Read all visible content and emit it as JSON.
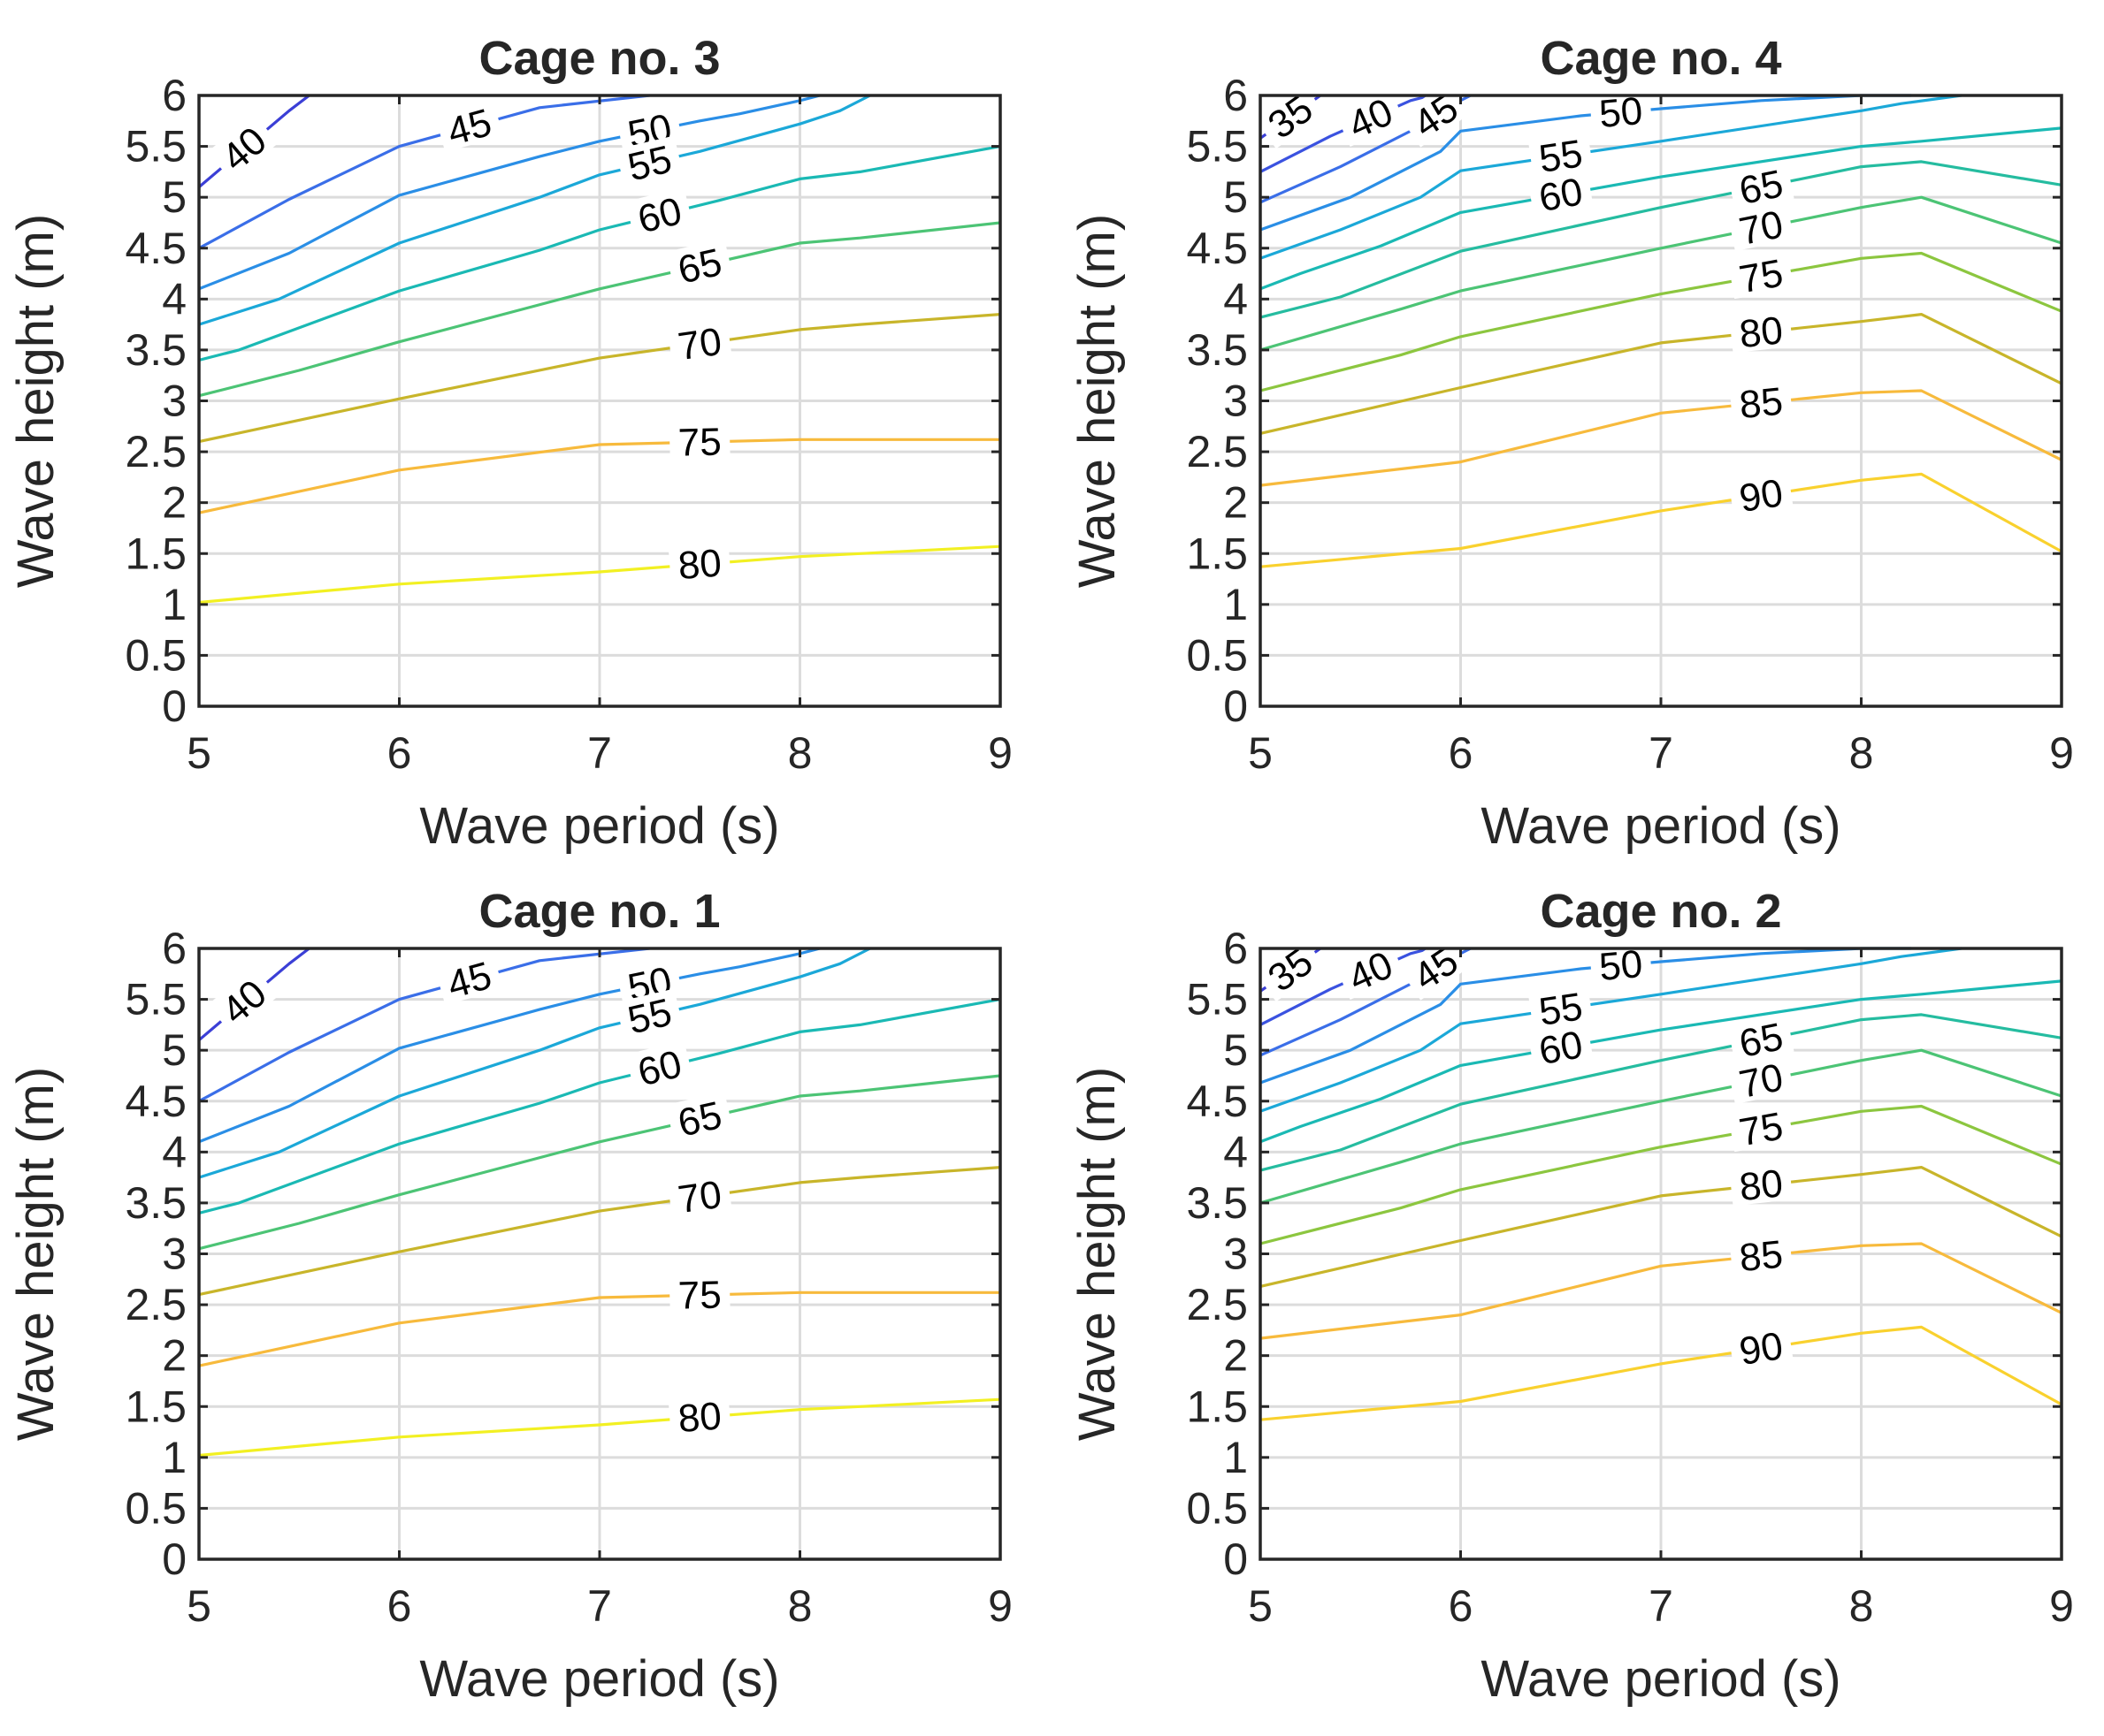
{
  "chart_data": [
    {
      "type": "contour",
      "title": "Cage no. 3",
      "xlabel": "Wave period (s)",
      "ylabel": "Wave height (m)",
      "xlim": [
        5,
        9
      ],
      "ylim": [
        0,
        6
      ],
      "xticks": [
        "5",
        "6",
        "7",
        "8",
        "9"
      ],
      "yticks": [
        "0",
        "0.5",
        "1",
        "1.5",
        "2",
        "2.5",
        "3",
        "3.5",
        "4",
        "4.5",
        "5",
        "5.5",
        "6"
      ],
      "grid": true,
      "levels": [
        {
          "level": "40",
          "color": "#3b3fd6",
          "x": [
            5,
            5.45,
            5.55
          ],
          "y": [
            5.1,
            5.85,
            6
          ]
        },
        {
          "level": "45",
          "color": "#3a6ee8",
          "x": [
            5,
            5.45,
            6,
            6.7,
            7.25
          ],
          "y": [
            4.5,
            4.98,
            5.5,
            5.88,
            6
          ]
        },
        {
          "level": "50",
          "color": "#2a8ee6",
          "x": [
            5,
            5.45,
            6,
            6.7,
            7,
            7.5,
            7.7,
            8,
            8.1
          ],
          "y": [
            4.1,
            4.45,
            5.02,
            5.4,
            5.55,
            5.75,
            5.82,
            5.95,
            6
          ]
        },
        {
          "level": "55",
          "color": "#1ba8d8",
          "x": [
            5,
            5.4,
            6,
            6.7,
            7,
            7.5,
            8,
            8.2,
            8.35
          ],
          "y": [
            3.75,
            4.0,
            4.55,
            5.0,
            5.22,
            5.45,
            5.72,
            5.85,
            6
          ]
        },
        {
          "level": "60",
          "color": "#1ab9b4",
          "x": [
            5,
            5.2,
            6,
            6.7,
            7,
            7.6,
            8,
            8.3,
            9
          ],
          "y": [
            3.4,
            3.5,
            4.08,
            4.48,
            4.68,
            4.97,
            5.18,
            5.25,
            5.5
          ]
        },
        {
          "level": "65",
          "color": "#4cc475",
          "x": [
            5,
            5.5,
            6,
            7,
            8,
            8.3,
            9
          ],
          "y": [
            3.05,
            3.3,
            3.58,
            4.1,
            4.55,
            4.6,
            4.75
          ]
        },
        {
          "level": "70",
          "color": "#c8b52a",
          "x": [
            5,
            6,
            7,
            8,
            8.3,
            9
          ],
          "y": [
            2.6,
            3.02,
            3.42,
            3.7,
            3.75,
            3.85
          ]
        },
        {
          "level": "75",
          "color": "#f7ba3c",
          "x": [
            5,
            6,
            7,
            8,
            8.3,
            9
          ],
          "y": [
            1.9,
            2.32,
            2.57,
            2.62,
            2.62,
            2.62
          ]
        },
        {
          "level": "80",
          "color": "#f2f022",
          "x": [
            5,
            6,
            7,
            8,
            8.3,
            9
          ],
          "y": [
            1.02,
            1.2,
            1.32,
            1.47,
            1.5,
            1.57
          ]
        }
      ]
    },
    {
      "type": "contour",
      "title": "Cage no. 4",
      "xlabel": "Wave period (s)",
      "ylabel": "Wave height (m)",
      "xlim": [
        5,
        9
      ],
      "ylim": [
        0,
        6
      ],
      "xticks": [
        "5",
        "6",
        "7",
        "8",
        "9"
      ],
      "yticks": [
        "0",
        "0.5",
        "1",
        "1.5",
        "2",
        "2.5",
        "3",
        "3.5",
        "4",
        "4.5",
        "5",
        "5.5",
        "6"
      ],
      "grid": true,
      "levels": [
        {
          "level": "35",
          "color": "#3b3fd6",
          "x": [
            5,
            5.3
          ],
          "y": [
            5.58,
            6
          ]
        },
        {
          "level": "40",
          "color": "#3a52e0",
          "x": [
            5,
            5.35,
            5.75,
            5.85
          ],
          "y": [
            5.25,
            5.6,
            5.95,
            6
          ]
        },
        {
          "level": "45",
          "color": "#3a6ee8",
          "x": [
            5,
            5.4,
            5.8,
            5.95,
            6.05
          ],
          "y": [
            4.95,
            5.3,
            5.7,
            5.9,
            6
          ]
        },
        {
          "level": "50",
          "color": "#2a8ee6",
          "x": [
            5,
            5.45,
            5.9,
            6,
            6.6,
            7,
            7.5,
            8,
            8.25
          ],
          "y": [
            4.68,
            5.0,
            5.45,
            5.65,
            5.8,
            5.87,
            5.95,
            6.0,
            6.0
          ]
        },
        {
          "level": "55",
          "color": "#1ba8d8",
          "x": [
            5,
            5.4,
            5.8,
            6,
            7,
            8,
            8.2,
            8.5
          ],
          "y": [
            4.4,
            4.68,
            5.0,
            5.26,
            5.55,
            5.85,
            5.92,
            6
          ]
        },
        {
          "level": "60",
          "color": "#1ab9b4",
          "x": [
            5,
            5.2,
            5.6,
            6,
            7,
            8,
            8.3,
            9
          ],
          "y": [
            4.1,
            4.25,
            4.52,
            4.85,
            5.2,
            5.5,
            5.55,
            5.68
          ]
        },
        {
          "level": "65",
          "color": "#25bca0",
          "x": [
            5,
            5.4,
            6,
            7,
            8,
            8.3,
            9
          ],
          "y": [
            3.82,
            4.02,
            4.47,
            4.9,
            5.3,
            5.35,
            5.12
          ]
        },
        {
          "level": "70",
          "color": "#4cc475",
          "x": [
            5,
            5.7,
            6,
            7,
            8,
            8.3,
            9
          ],
          "y": [
            3.5,
            3.9,
            4.08,
            4.5,
            4.9,
            5.0,
            4.55
          ]
        },
        {
          "level": "75",
          "color": "#8cc63f",
          "x": [
            5,
            5.7,
            6,
            7,
            8,
            8.3,
            9
          ],
          "y": [
            3.1,
            3.45,
            3.63,
            4.05,
            4.4,
            4.45,
            3.88
          ]
        },
        {
          "level": "80",
          "color": "#c8b52a",
          "x": [
            5,
            6,
            7,
            8,
            8.3,
            9
          ],
          "y": [
            2.68,
            3.13,
            3.57,
            3.78,
            3.85,
            3.17
          ]
        },
        {
          "level": "85",
          "color": "#f7ba3c",
          "x": [
            5,
            6,
            7,
            8,
            8.3,
            9
          ],
          "y": [
            2.17,
            2.4,
            2.88,
            3.08,
            3.1,
            2.42
          ]
        },
        {
          "level": "90",
          "color": "#f9d12e",
          "x": [
            5,
            6,
            7,
            8,
            8.3,
            9
          ],
          "y": [
            1.37,
            1.55,
            1.92,
            2.22,
            2.28,
            1.52
          ]
        }
      ]
    },
    {
      "type": "contour",
      "title": "Cage no. 1",
      "xlabel": "Wave period (s)",
      "ylabel": "Wave height (m)",
      "xlim": [
        5,
        9
      ],
      "ylim": [
        0,
        6
      ],
      "xticks": [
        "5",
        "6",
        "7",
        "8",
        "9"
      ],
      "yticks": [
        "0",
        "0.5",
        "1",
        "1.5",
        "2",
        "2.5",
        "3",
        "3.5",
        "4",
        "4.5",
        "5",
        "5.5",
        "6"
      ],
      "grid": true,
      "levels": [
        {
          "level": "40",
          "color": "#3b3fd6",
          "x": [
            5,
            5.45,
            5.55
          ],
          "y": [
            5.1,
            5.85,
            6
          ]
        },
        {
          "level": "45",
          "color": "#3a6ee8",
          "x": [
            5,
            5.45,
            6,
            6.7,
            7.25
          ],
          "y": [
            4.5,
            4.98,
            5.5,
            5.88,
            6
          ]
        },
        {
          "level": "50",
          "color": "#2a8ee6",
          "x": [
            5,
            5.45,
            6,
            6.7,
            7,
            7.5,
            7.7,
            8,
            8.1
          ],
          "y": [
            4.1,
            4.45,
            5.02,
            5.4,
            5.55,
            5.75,
            5.82,
            5.95,
            6
          ]
        },
        {
          "level": "55",
          "color": "#1ba8d8",
          "x": [
            5,
            5.4,
            6,
            6.7,
            7,
            7.5,
            8,
            8.2,
            8.35
          ],
          "y": [
            3.75,
            4.0,
            4.55,
            5.0,
            5.22,
            5.45,
            5.72,
            5.85,
            6
          ]
        },
        {
          "level": "60",
          "color": "#1ab9b4",
          "x": [
            5,
            5.2,
            6,
            6.7,
            7,
            7.6,
            8,
            8.3,
            9
          ],
          "y": [
            3.4,
            3.5,
            4.08,
            4.48,
            4.68,
            4.97,
            5.18,
            5.25,
            5.5
          ]
        },
        {
          "level": "65",
          "color": "#4cc475",
          "x": [
            5,
            5.5,
            6,
            7,
            8,
            8.3,
            9
          ],
          "y": [
            3.05,
            3.3,
            3.58,
            4.1,
            4.55,
            4.6,
            4.75
          ]
        },
        {
          "level": "70",
          "color": "#c8b52a",
          "x": [
            5,
            6,
            7,
            8,
            8.3,
            9
          ],
          "y": [
            2.6,
            3.02,
            3.42,
            3.7,
            3.75,
            3.85
          ]
        },
        {
          "level": "75",
          "color": "#f7ba3c",
          "x": [
            5,
            6,
            7,
            8,
            8.3,
            9
          ],
          "y": [
            1.9,
            2.32,
            2.57,
            2.62,
            2.62,
            2.62
          ]
        },
        {
          "level": "80",
          "color": "#f2f022",
          "x": [
            5,
            6,
            7,
            8,
            8.3,
            9
          ],
          "y": [
            1.02,
            1.2,
            1.32,
            1.47,
            1.5,
            1.57
          ]
        }
      ]
    },
    {
      "type": "contour",
      "title": "Cage no. 2",
      "xlabel": "Wave period (s)",
      "ylabel": "Wave height (m)",
      "xlim": [
        5,
        9
      ],
      "ylim": [
        0,
        6
      ],
      "xticks": [
        "5",
        "6",
        "7",
        "8",
        "9"
      ],
      "yticks": [
        "0",
        "0.5",
        "1",
        "1.5",
        "2",
        "2.5",
        "3",
        "3.5",
        "4",
        "4.5",
        "5",
        "5.5",
        "6"
      ],
      "grid": true,
      "levels": [
        {
          "level": "35",
          "color": "#3b3fd6",
          "x": [
            5,
            5.3
          ],
          "y": [
            5.58,
            6
          ]
        },
        {
          "level": "40",
          "color": "#3a52e0",
          "x": [
            5,
            5.35,
            5.75,
            5.85
          ],
          "y": [
            5.25,
            5.6,
            5.95,
            6
          ]
        },
        {
          "level": "45",
          "color": "#3a6ee8",
          "x": [
            5,
            5.4,
            5.8,
            5.95,
            6.05
          ],
          "y": [
            4.95,
            5.3,
            5.7,
            5.9,
            6
          ]
        },
        {
          "level": "50",
          "color": "#2a8ee6",
          "x": [
            5,
            5.45,
            5.9,
            6,
            6.6,
            7,
            7.5,
            8,
            8.25
          ],
          "y": [
            4.68,
            5.0,
            5.45,
            5.65,
            5.8,
            5.87,
            5.95,
            6.0,
            6.0
          ]
        },
        {
          "level": "55",
          "color": "#1ba8d8",
          "x": [
            5,
            5.4,
            5.8,
            6,
            7,
            8,
            8.2,
            8.5
          ],
          "y": [
            4.4,
            4.68,
            5.0,
            5.26,
            5.55,
            5.85,
            5.92,
            6
          ]
        },
        {
          "level": "60",
          "color": "#1ab9b4",
          "x": [
            5,
            5.2,
            5.6,
            6,
            7,
            8,
            8.3,
            9
          ],
          "y": [
            4.1,
            4.25,
            4.52,
            4.85,
            5.2,
            5.5,
            5.55,
            5.68
          ]
        },
        {
          "level": "65",
          "color": "#25bca0",
          "x": [
            5,
            5.4,
            6,
            7,
            8,
            8.3,
            9
          ],
          "y": [
            3.82,
            4.02,
            4.47,
            4.9,
            5.3,
            5.35,
            5.12
          ]
        },
        {
          "level": "70",
          "color": "#4cc475",
          "x": [
            5,
            5.7,
            6,
            7,
            8,
            8.3,
            9
          ],
          "y": [
            3.5,
            3.9,
            4.08,
            4.5,
            4.9,
            5.0,
            4.55
          ]
        },
        {
          "level": "75",
          "color": "#8cc63f",
          "x": [
            5,
            5.7,
            6,
            7,
            8,
            8.3,
            9
          ],
          "y": [
            3.1,
            3.45,
            3.63,
            4.05,
            4.4,
            4.45,
            3.88
          ]
        },
        {
          "level": "80",
          "color": "#c8b52a",
          "x": [
            5,
            6,
            7,
            8,
            8.3,
            9
          ],
          "y": [
            2.68,
            3.13,
            3.57,
            3.78,
            3.85,
            3.17
          ]
        },
        {
          "level": "85",
          "color": "#f7ba3c",
          "x": [
            5,
            6,
            7,
            8,
            8.3,
            9
          ],
          "y": [
            2.17,
            2.4,
            2.88,
            3.08,
            3.1,
            2.42
          ]
        },
        {
          "level": "90",
          "color": "#f9d12e",
          "x": [
            5,
            6,
            7,
            8,
            8.3,
            9
          ],
          "y": [
            1.37,
            1.55,
            1.92,
            2.22,
            2.28,
            1.52
          ]
        }
      ]
    }
  ]
}
